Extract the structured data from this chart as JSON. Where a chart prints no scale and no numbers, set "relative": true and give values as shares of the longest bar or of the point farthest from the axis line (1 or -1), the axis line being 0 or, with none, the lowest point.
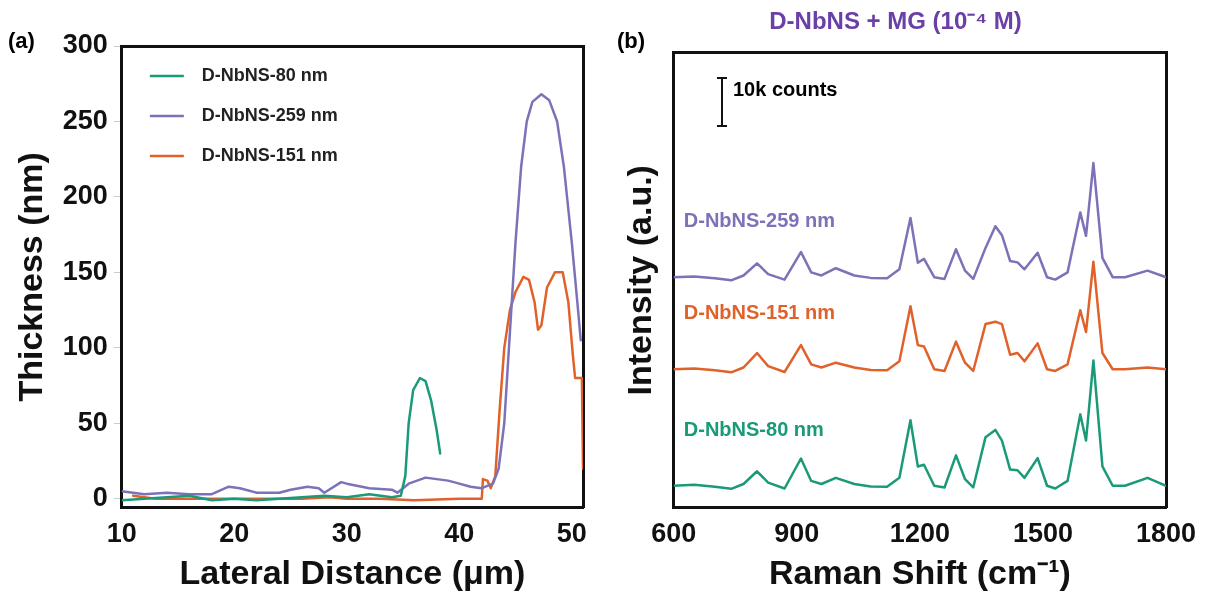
{
  "chart_data": [
    {
      "type": "line",
      "xlabel": "Lateral Distance (μm)",
      "ylabel": "Thickness (nm)",
      "annotations": [
        "(a)"
      ],
      "xlim": [
        10,
        51
      ],
      "xticks": [
        10,
        20,
        30,
        40,
        50
      ],
      "ylim": [
        -6,
        300
      ],
      "yticks": [
        0,
        50,
        100,
        150,
        200,
        250,
        300
      ],
      "legend": "top left",
      "grid": false,
      "marker": "none",
      "line_style": "solid",
      "series": [
        {
          "name": "D-NbNS-80 nm",
          "color": "#1a9a78",
          "x": [
            10,
            12,
            14,
            16,
            18,
            20,
            22,
            24,
            26,
            28,
            30,
            32,
            34,
            34.8,
            35.2,
            35.5,
            35.9,
            36.5,
            37,
            37.5,
            38,
            38.3
          ],
          "values": [
            -1,
            0,
            1,
            2,
            -1,
            0,
            -1,
            0,
            1,
            2,
            1,
            3,
            1,
            2,
            15,
            50,
            72,
            80,
            78,
            65,
            45,
            30
          ]
        },
        {
          "name": "D-NbNS-259 nm",
          "color": "#7b72b8",
          "x": [
            10,
            12,
            14,
            16,
            18,
            19.5,
            20.5,
            22,
            24,
            25,
            26.5,
            27.5,
            28,
            29.5,
            30,
            32,
            34,
            34.5,
            35.5,
            37,
            38,
            39,
            40,
            41,
            42,
            43,
            43.5,
            44,
            44.5,
            45,
            45.5,
            46,
            46.5,
            47.3,
            48,
            48.7,
            49.3,
            50,
            50.5,
            50.8
          ],
          "values": [
            5,
            3,
            4,
            3,
            3,
            8,
            7,
            4,
            4,
            6,
            8,
            7,
            4,
            11,
            10,
            7,
            6,
            4,
            10,
            14,
            13,
            12,
            10,
            8,
            7,
            10,
            20,
            50,
            110,
            170,
            220,
            250,
            263,
            268,
            264,
            250,
            220,
            170,
            130,
            105
          ]
        },
        {
          "name": "D-NbNS-151 nm",
          "color": "#e0622a",
          "x": [
            11,
            13,
            15,
            17,
            20,
            23,
            26,
            28.5,
            30,
            33,
            36,
            40,
            42,
            42.1,
            42.5,
            42.8,
            43.2,
            43.6,
            44,
            44.5,
            45,
            45.7,
            46.2,
            46.7,
            47,
            47.3,
            47.8,
            48.5,
            49.2,
            49.7,
            50.1,
            50.3,
            50.9,
            51
          ],
          "values": [
            2,
            0,
            0,
            0,
            0,
            0,
            0,
            1,
            0,
            0,
            -1,
            0,
            0,
            13,
            12,
            7,
            15,
            60,
            100,
            125,
            137,
            147,
            145,
            130,
            112,
            115,
            140,
            150,
            150,
            130,
            95,
            80,
            80,
            20
          ]
        }
      ]
    },
    {
      "type": "line",
      "title": "D-NbNS + MG (10⁻⁴ M)",
      "xlabel": "Raman Shift (cm⁻¹)",
      "ylabel": "Intensity (a.u.)",
      "annotations": [
        "(b)",
        "10k counts"
      ],
      "relative": true,
      "xlim": [
        600,
        1800
      ],
      "xticks": [
        600,
        900,
        1200,
        1500,
        1800
      ],
      "legend": false,
      "grid": false,
      "marker": "none",
      "line_style": "solid",
      "x": [
        600,
        650,
        700,
        740,
        770,
        803,
        830,
        870,
        910,
        935,
        960,
        995,
        1040,
        1080,
        1120,
        1150,
        1177,
        1195,
        1210,
        1235,
        1260,
        1288,
        1310,
        1330,
        1360,
        1384,
        1400,
        1420,
        1438,
        1455,
        1487,
        1510,
        1530,
        1560,
        1591,
        1605,
        1623,
        1645,
        1670,
        1700,
        1755,
        1800
      ],
      "series": [
        {
          "name": "D-NbNS-259 nm",
          "color": "#7b72b8",
          "values": [
            0.669,
            0.671,
            0.666,
            0.66,
            0.674,
            0.709,
            0.678,
            0.662,
            0.742,
            0.683,
            0.674,
            0.695,
            0.674,
            0.667,
            0.666,
            0.692,
            0.841,
            0.711,
            0.722,
            0.669,
            0.664,
            0.75,
            0.688,
            0.664,
            0.754,
            0.817,
            0.791,
            0.716,
            0.712,
            0.692,
            0.74,
            0.669,
            0.662,
            0.683,
            0.857,
            0.789,
            1,
            0.725,
            0.669,
            0.669,
            0.688,
            0.669
          ]
        },
        {
          "name": "D-NbNS-151 nm",
          "color": "#e0622a",
          "values": [
            0.402,
            0.404,
            0.399,
            0.393,
            0.407,
            0.449,
            0.411,
            0.394,
            0.472,
            0.416,
            0.407,
            0.421,
            0.407,
            0.4,
            0.399,
            0.425,
            0.585,
            0.472,
            0.468,
            0.402,
            0.397,
            0.482,
            0.421,
            0.397,
            0.533,
            0.54,
            0.533,
            0.444,
            0.449,
            0.425,
            0.477,
            0.402,
            0.397,
            0.416,
            0.573,
            0.51,
            0.714,
            0.449,
            0.402,
            0.402,
            0.407,
            0.402
          ]
        },
        {
          "name": "D-NbNS-80 nm",
          "color": "#1a9a78",
          "values": [
            0.064,
            0.067,
            0.061,
            0.055,
            0.069,
            0.106,
            0.073,
            0.056,
            0.143,
            0.078,
            0.069,
            0.087,
            0.069,
            0.062,
            0.061,
            0.087,
            0.254,
            0.12,
            0.125,
            0.064,
            0.059,
            0.152,
            0.083,
            0.059,
            0.205,
            0.226,
            0.195,
            0.111,
            0.109,
            0.087,
            0.144,
            0.064,
            0.056,
            0.078,
            0.271,
            0.195,
            0.427,
            0.12,
            0.064,
            0.064,
            0.087,
            0.064
          ]
        }
      ]
    }
  ]
}
